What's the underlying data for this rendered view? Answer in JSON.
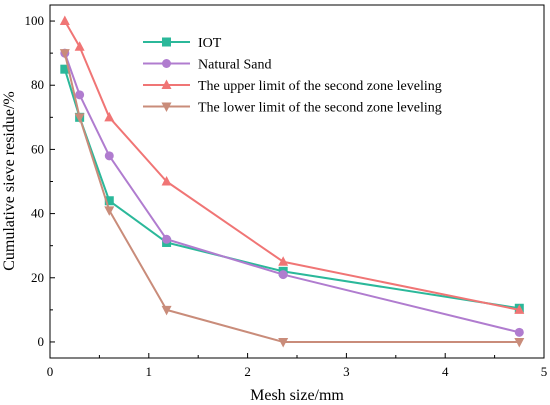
{
  "chart_data": {
    "type": "line",
    "title": "",
    "xlabel": "Mesh size/mm",
    "ylabel": "Cumulative sieve residue/%",
    "xlim": [
      0,
      5
    ],
    "ylim": [
      -5,
      105
    ],
    "x_ticks": [
      "0",
      "1",
      "2",
      "3",
      "4",
      "5"
    ],
    "y_ticks": [
      "0",
      "20",
      "40",
      "60",
      "80",
      "100"
    ],
    "legend_position": "top-center",
    "grid": false,
    "series": [
      {
        "name": "IOT",
        "color": "#2bb89a",
        "marker": "square",
        "x": [
          0.15,
          0.3,
          0.6,
          1.18,
          2.36,
          4.75
        ],
        "y": [
          85,
          70,
          44,
          31,
          22,
          10.5
        ]
      },
      {
        "name": "Natural Sand",
        "color": "#b07ccf",
        "marker": "circle",
        "x": [
          0.15,
          0.3,
          0.6,
          1.18,
          2.36,
          4.75
        ],
        "y": [
          90,
          77,
          58,
          32,
          21,
          3
        ]
      },
      {
        "name": "The upper limit of the second zone leveling",
        "color": "#f07575",
        "marker": "triangle-up",
        "x": [
          0.15,
          0.3,
          0.6,
          1.18,
          2.36,
          4.75
        ],
        "y": [
          100,
          92,
          70,
          50,
          25,
          10
        ]
      },
      {
        "name": "The lower limit of the second zone leveling",
        "color": "#c98c7a",
        "marker": "triangle-down",
        "x": [
          0.15,
          0.3,
          0.6,
          1.18,
          2.36,
          4.75
        ],
        "y": [
          90,
          70,
          41,
          10,
          0,
          0
        ]
      }
    ]
  }
}
